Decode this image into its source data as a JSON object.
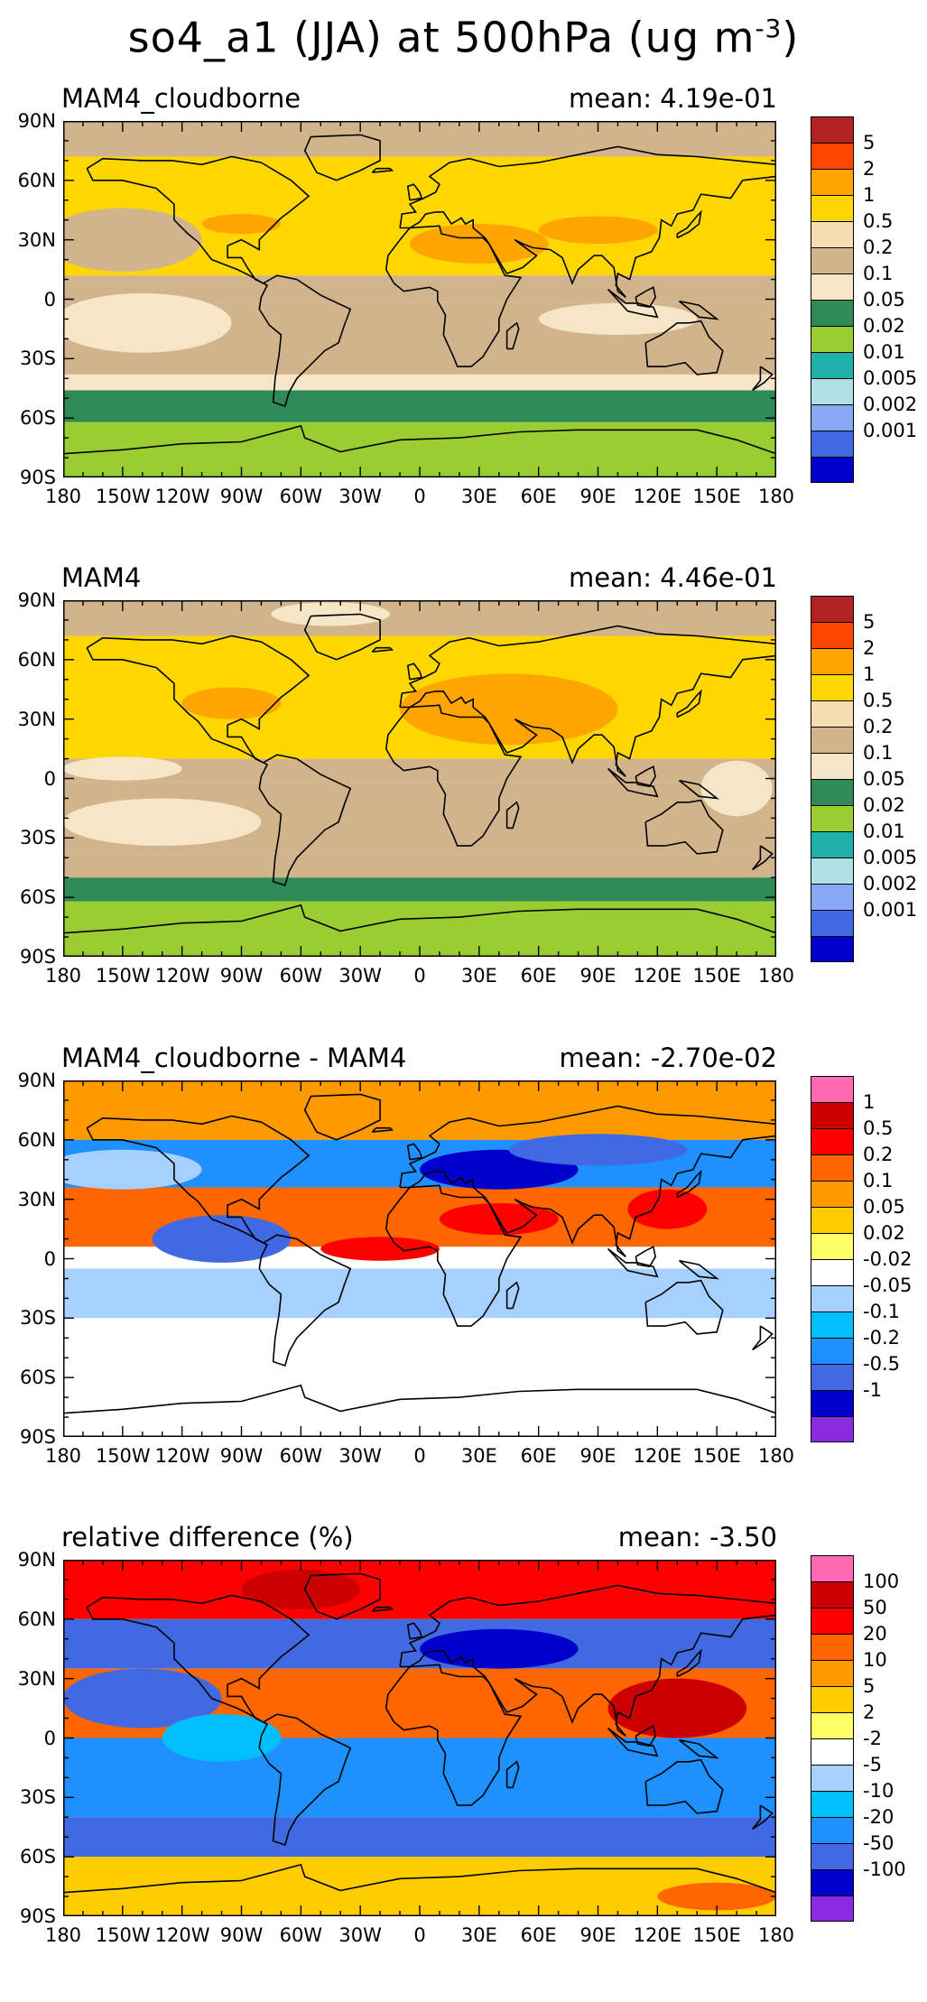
{
  "title": {
    "main": "so4_a1 (JJA) at 500hPa (ug m",
    "sup": "-3",
    "end": ")"
  },
  "axes": {
    "lat_ticks": [
      "90N",
      "60N",
      "30N",
      "0",
      "30S",
      "60S",
      "90S"
    ],
    "lon_ticks": [
      "180",
      "150W",
      "120W",
      "90W",
      "60W",
      "30W",
      "0",
      "30E",
      "60E",
      "90E",
      "120E",
      "150E",
      "180"
    ]
  },
  "panels": [
    {
      "label": "MAM4_cloudborne",
      "mean": "mean: 4.19e-01",
      "levels": [
        "5",
        "2",
        "1",
        "0.5",
        "0.2",
        "0.1",
        "0.05",
        "0.02",
        "0.01",
        "0.005",
        "0.002",
        "0.001"
      ],
      "colors": [
        "#b22222",
        "#ff4500",
        "#ffa500",
        "#ffd700",
        "#f5deb3",
        "#d2b48c",
        "#f5e6c8",
        "#2e8b57",
        "#9acd32",
        "#20b2aa",
        "#b0e0e6",
        "#87a9f5",
        "#4169e1",
        "#0000cd"
      ],
      "map_style": "absolute_a"
    },
    {
      "label": "MAM4",
      "mean": "mean: 4.46e-01",
      "levels": [
        "5",
        "2",
        "1",
        "0.5",
        "0.2",
        "0.1",
        "0.05",
        "0.02",
        "0.01",
        "0.005",
        "0.002",
        "0.001"
      ],
      "colors": [
        "#b22222",
        "#ff4500",
        "#ffa500",
        "#ffd700",
        "#f5deb3",
        "#d2b48c",
        "#f5e6c8",
        "#2e8b57",
        "#9acd32",
        "#20b2aa",
        "#b0e0e6",
        "#87a9f5",
        "#4169e1",
        "#0000cd"
      ],
      "map_style": "absolute_b"
    },
    {
      "label": "MAM4_cloudborne - MAM4",
      "mean": "mean: -2.70e-02",
      "levels": [
        "1",
        "0.5",
        "0.2",
        "0.1",
        "0.05",
        "0.02",
        "-0.02",
        "-0.05",
        "-0.1",
        "-0.2",
        "-0.5",
        "-1"
      ],
      "colors": [
        "#ff69b4",
        "#cc0000",
        "#ff0000",
        "#ff6600",
        "#ff9900",
        "#ffcc00",
        "#ffff66",
        "#ffffff",
        "#a6d0ff",
        "#00bfff",
        "#1e90ff",
        "#4169e1",
        "#0000cd",
        "#8a2be2"
      ],
      "map_style": "diff"
    },
    {
      "label": "relative difference (%)",
      "mean": "mean: -3.50",
      "levels": [
        "100",
        "50",
        "20",
        "10",
        "5",
        "2",
        "-2",
        "-5",
        "-10",
        "-20",
        "-50",
        "-100"
      ],
      "colors": [
        "#ff69b4",
        "#cc0000",
        "#ff0000",
        "#ff6600",
        "#ff9900",
        "#ffcc00",
        "#ffff66",
        "#ffffff",
        "#a6d0ff",
        "#00bfff",
        "#1e90ff",
        "#4169e1",
        "#0000cd",
        "#8a2be2"
      ],
      "map_style": "rel"
    }
  ]
}
